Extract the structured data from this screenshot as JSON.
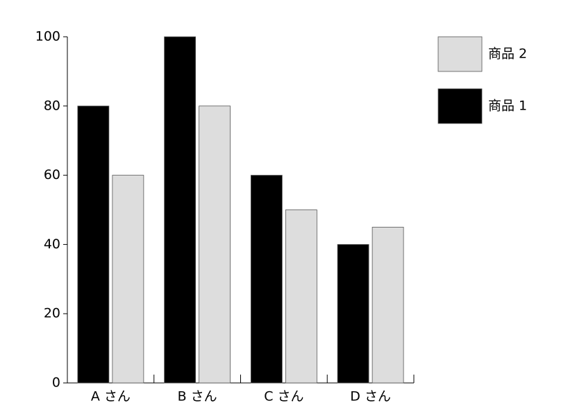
{
  "chart_data": {
    "type": "bar",
    "categories": [
      "A さん",
      "B さん",
      "C さん",
      "D さん"
    ],
    "series": [
      {
        "name": "商品 1",
        "color": "#000000",
        "values": [
          80,
          100,
          60,
          40
        ]
      },
      {
        "name": "商品 2",
        "color": "#dddddd",
        "values": [
          60,
          80,
          50,
          45
        ]
      }
    ],
    "ylim": [
      0,
      100
    ],
    "yticks": [
      0,
      20,
      40,
      60,
      80,
      100
    ],
    "legend": "upper right",
    "legend_reversed": true
  }
}
